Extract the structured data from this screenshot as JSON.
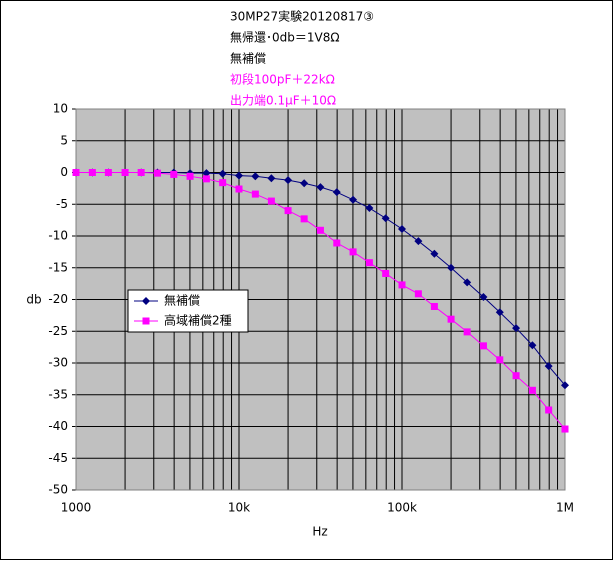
{
  "chart_data": {
    "type": "line",
    "title_lines": [
      {
        "text": "30MP27実験20120817③",
        "color": "#000000"
      },
      {
        "text": "無帰還･0db＝1V8Ω",
        "color": "#000000"
      },
      {
        "text": "無補償",
        "color": "#000000"
      },
      {
        "text": "初段100pF＋22kΩ",
        "color": "#ff00ff"
      },
      {
        "text": "出力端0.1μF＋10Ω",
        "color": "#ff00ff"
      }
    ],
    "x_label": "Hz",
    "y_label": "db",
    "x": [
      1000,
      1260,
      1580,
      2000,
      2510,
      3160,
      3980,
      5010,
      6310,
      7940,
      10000,
      12600,
      15800,
      20000,
      25100,
      31600,
      39800,
      50100,
      63100,
      79400,
      100000,
      126000,
      158000,
      200000,
      251000,
      316000,
      398000,
      501000,
      631000,
      794000,
      1000000
    ],
    "series": [
      {
        "name": "無補償",
        "color": "#000080",
        "marker": "diamond",
        "values": [
          0,
          0,
          0,
          0,
          0,
          0,
          0,
          -0.1,
          -0.1,
          -0.2,
          -0.5,
          -0.6,
          -0.9,
          -1.2,
          -1.7,
          -2.3,
          -3.1,
          -4.3,
          -5.6,
          -7.2,
          -8.9,
          -10.8,
          -12.8,
          -15.0,
          -17.3,
          -19.6,
          -22.0,
          -24.5,
          -27.2,
          -30.5,
          -33.5
        ]
      },
      {
        "name": "高域補償2種",
        "color": "#ff00ff",
        "marker": "square",
        "values": [
          0,
          0,
          0,
          0,
          0,
          -0.1,
          -0.3,
          -0.6,
          -1.0,
          -1.6,
          -2.6,
          -3.4,
          -4.5,
          -6.0,
          -7.3,
          -9.1,
          -11.1,
          -12.5,
          -14.2,
          -15.9,
          -17.7,
          -19.1,
          -21.1,
          -23.1,
          -25.1,
          -27.3,
          -29.5,
          -32.0,
          -34.3,
          -37.4,
          -40.4
        ]
      }
    ],
    "xlim": [
      1000,
      1000000
    ],
    "x_log": true,
    "xticks": [
      {
        "value": 1000,
        "label": "1000"
      },
      {
        "value": 10000,
        "label": "10k"
      },
      {
        "value": 100000,
        "label": "100k"
      },
      {
        "value": 1000000,
        "label": "1M"
      }
    ],
    "ylim": [
      -50,
      10
    ],
    "yticks": [
      -50,
      -45,
      -40,
      -35,
      -30,
      -25,
      -20,
      -15,
      -10,
      -5,
      0,
      5,
      10
    ],
    "grid": true,
    "plot_background": "#c0c0c0",
    "legend_position": "left"
  }
}
